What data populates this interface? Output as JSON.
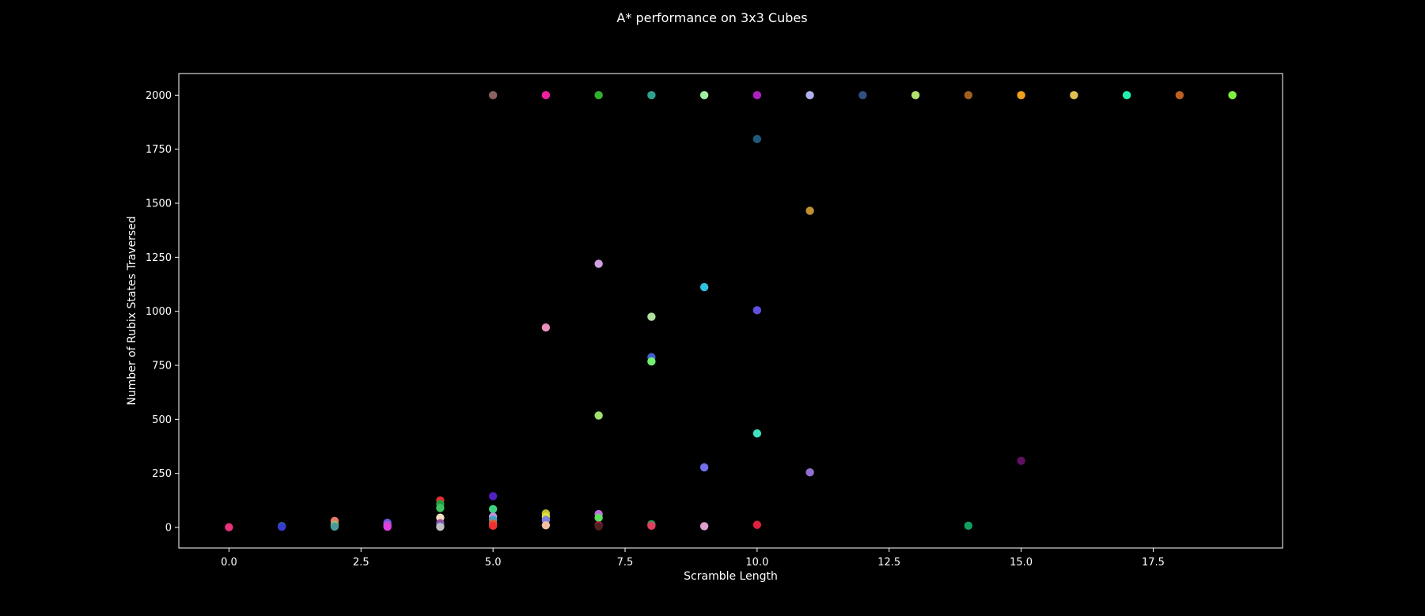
{
  "chart_data": {
    "type": "scatter",
    "title": "A* performance on 3x3 Cubes",
    "xlabel": "Scramble Length",
    "ylabel": "Number of Rubix States Traversed",
    "xlim": [
      -0.95,
      19.95
    ],
    "ylim": [
      -95,
      2100
    ],
    "xticks": [
      0,
      2.5,
      5,
      7.5,
      10,
      12.5,
      15,
      17.5
    ],
    "xtick_labels": [
      "0.0",
      "2.5",
      "5.0",
      "7.5",
      "10.0",
      "12.5",
      "15.0",
      "17.5"
    ],
    "yticks": [
      0,
      250,
      500,
      750,
      1000,
      1250,
      1500,
      1750,
      2000
    ],
    "ytick_labels": [
      "0",
      "250",
      "500",
      "750",
      "1000",
      "1250",
      "1500",
      "1750",
      "2000"
    ],
    "grid": false,
    "legend": "none",
    "points": [
      {
        "x": 0,
        "y": 1,
        "color": "#e8327a"
      },
      {
        "x": 1,
        "y": 6,
        "color": "#2a9d8f"
      },
      {
        "x": 1,
        "y": 3,
        "color": "#3a3ad0"
      },
      {
        "x": 2,
        "y": 30,
        "color": "#e87a6a"
      },
      {
        "x": 2,
        "y": 12,
        "color": "#9ac06a"
      },
      {
        "x": 2,
        "y": 4,
        "color": "#4a9a9a"
      },
      {
        "x": 3,
        "y": 22,
        "color": "#6a5ae0"
      },
      {
        "x": 3,
        "y": 10,
        "color": "#c050d0"
      },
      {
        "x": 3,
        "y": 3,
        "color": "#e040e0"
      },
      {
        "x": 4,
        "y": 125,
        "color": "#e03030"
      },
      {
        "x": 4,
        "y": 108,
        "color": "#20a040"
      },
      {
        "x": 4,
        "y": 90,
        "color": "#40c060"
      },
      {
        "x": 4,
        "y": 45,
        "color": "#f0e0c0"
      },
      {
        "x": 4,
        "y": 20,
        "color": "#a050a0"
      },
      {
        "x": 4,
        "y": 10,
        "color": "#6060c0"
      },
      {
        "x": 4,
        "y": 3,
        "color": "#c0c0c0"
      },
      {
        "x": 5,
        "y": 2000,
        "color": "#8a6060"
      },
      {
        "x": 5,
        "y": 145,
        "color": "#5020c0"
      },
      {
        "x": 5,
        "y": 85,
        "color": "#40d080"
      },
      {
        "x": 5,
        "y": 50,
        "color": "#c090e0"
      },
      {
        "x": 5,
        "y": 35,
        "color": "#40a0c0"
      },
      {
        "x": 5,
        "y": 18,
        "color": "#e06030"
      },
      {
        "x": 5,
        "y": 8,
        "color": "#f03030"
      },
      {
        "x": 6,
        "y": 2000,
        "color": "#f020a0"
      },
      {
        "x": 6,
        "y": 925,
        "color": "#e890c0"
      },
      {
        "x": 6,
        "y": 65,
        "color": "#c0c030"
      },
      {
        "x": 6,
        "y": 50,
        "color": "#e0e040"
      },
      {
        "x": 6,
        "y": 35,
        "color": "#8080e0"
      },
      {
        "x": 6,
        "y": 10,
        "color": "#f0c0a0"
      },
      {
        "x": 7,
        "y": 2000,
        "color": "#30b030"
      },
      {
        "x": 7,
        "y": 1220,
        "color": "#d0a0e0"
      },
      {
        "x": 7,
        "y": 518,
        "color": "#a0e070"
      },
      {
        "x": 7,
        "y": 62,
        "color": "#c070e0"
      },
      {
        "x": 7,
        "y": 45,
        "color": "#60e060"
      },
      {
        "x": 7,
        "y": 10,
        "color": "#c02050"
      },
      {
        "x": 7,
        "y": 5,
        "color": "#502020"
      },
      {
        "x": 8,
        "y": 2000,
        "color": "#30a090"
      },
      {
        "x": 8,
        "y": 975,
        "color": "#b0e0a0"
      },
      {
        "x": 8,
        "y": 788,
        "color": "#4060d0"
      },
      {
        "x": 8,
        "y": 768,
        "color": "#70f070"
      },
      {
        "x": 8,
        "y": 15,
        "color": "#20a050"
      },
      {
        "x": 8,
        "y": 8,
        "color": "#e04060"
      },
      {
        "x": 9,
        "y": 2000,
        "color": "#a0f0a0"
      },
      {
        "x": 9,
        "y": 1112,
        "color": "#30c0e0"
      },
      {
        "x": 9,
        "y": 278,
        "color": "#7070f0"
      },
      {
        "x": 9,
        "y": 6,
        "color": "#e0a0d0"
      },
      {
        "x": 10,
        "y": 2000,
        "color": "#b020c0"
      },
      {
        "x": 10,
        "y": 1797,
        "color": "#205a7a"
      },
      {
        "x": 10,
        "y": 1005,
        "color": "#6050e0"
      },
      {
        "x": 10,
        "y": 435,
        "color": "#40e0c0"
      },
      {
        "x": 10,
        "y": 12,
        "color": "#e02040"
      },
      {
        "x": 11,
        "y": 2000,
        "color": "#b0b0f0"
      },
      {
        "x": 11,
        "y": 1465,
        "color": "#c09030"
      },
      {
        "x": 11,
        "y": 255,
        "color": "#9070d0"
      },
      {
        "x": 12,
        "y": 2000,
        "color": "#305080"
      },
      {
        "x": 13,
        "y": 2000,
        "color": "#b0e070"
      },
      {
        "x": 14,
        "y": 2000,
        "color": "#a06020"
      },
      {
        "x": 14,
        "y": 8,
        "color": "#10a060"
      },
      {
        "x": 15,
        "y": 2000,
        "color": "#f0a020"
      },
      {
        "x": 15,
        "y": 308,
        "color": "#601060"
      },
      {
        "x": 16,
        "y": 2000,
        "color": "#e0c050"
      },
      {
        "x": 17,
        "y": 2000,
        "color": "#20f0b0"
      },
      {
        "x": 18,
        "y": 2000,
        "color": "#c06020"
      },
      {
        "x": 19,
        "y": 2000,
        "color": "#80f040"
      }
    ]
  },
  "colors": {
    "background": "#000000",
    "foreground": "#ffffff"
  }
}
